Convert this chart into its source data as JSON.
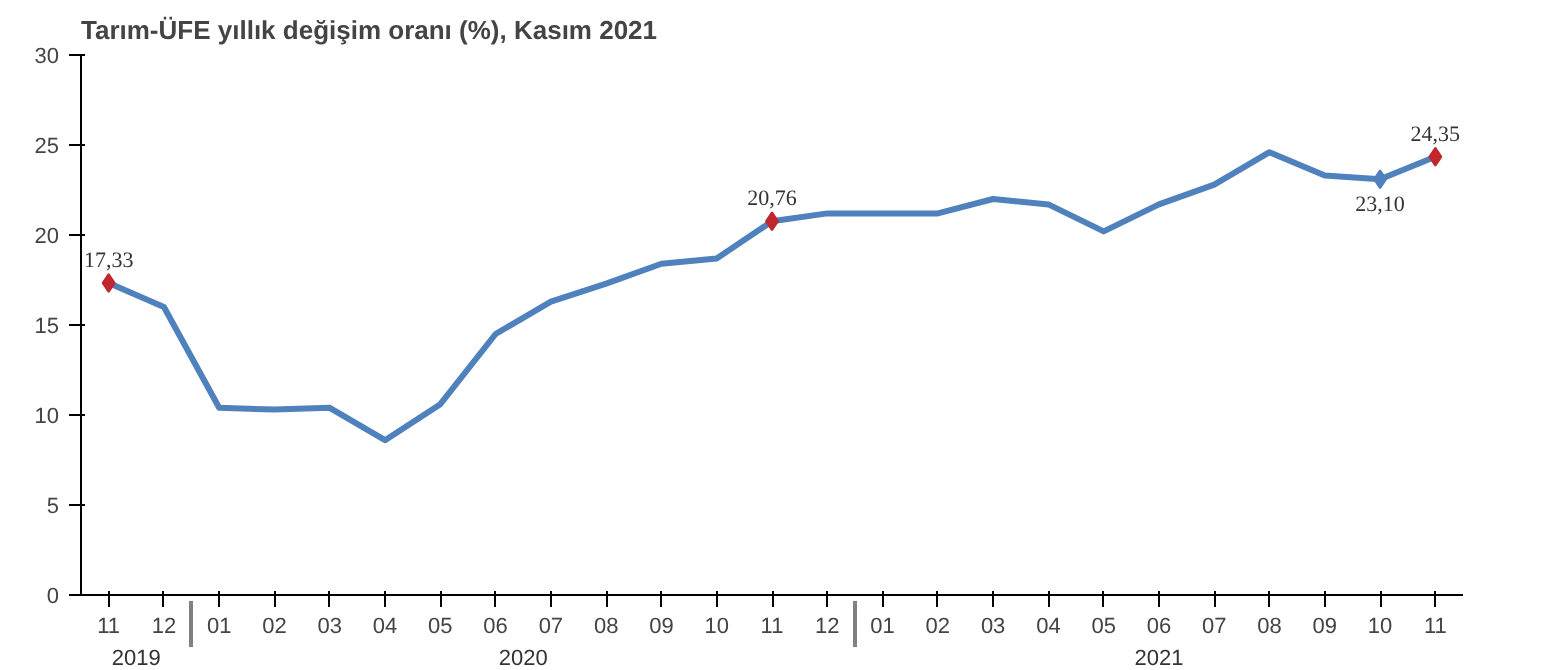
{
  "chart_data": {
    "type": "line",
    "title": "Tarım-ÜFE yıllık değişim oranı (%), Kasım 2021",
    "categories": [
      "11",
      "12",
      "01",
      "02",
      "03",
      "04",
      "05",
      "06",
      "07",
      "08",
      "09",
      "10",
      "11",
      "12",
      "01",
      "02",
      "03",
      "04",
      "05",
      "06",
      "07",
      "08",
      "09",
      "10",
      "11"
    ],
    "annotations": [
      "2019",
      "2020",
      "2021"
    ],
    "series": [
      {
        "color": "#4f81bd",
        "values": [
          17.33,
          16.0,
          10.4,
          10.3,
          10.4,
          8.6,
          10.6,
          14.5,
          16.3,
          17.3,
          18.4,
          18.7,
          20.76,
          21.2,
          21.2,
          21.2,
          22.0,
          21.7,
          20.2,
          21.7,
          22.8,
          24.6,
          23.3,
          23.1,
          24.35
        ],
        "colors": [
          "#c0282d",
          null,
          null,
          null,
          null,
          null,
          null,
          null,
          null,
          null,
          null,
          null,
          "#c0282d",
          null,
          null,
          null,
          null,
          null,
          null,
          null,
          null,
          null,
          null,
          "#4f81bd",
          "#c0282d"
        ],
        "value_labels": [
          "17,33",
          null,
          null,
          null,
          null,
          null,
          null,
          null,
          null,
          null,
          null,
          null,
          "20,76",
          null,
          null,
          null,
          null,
          null,
          null,
          null,
          null,
          null,
          null,
          "23,10",
          "24,35"
        ]
      }
    ],
    "ylim": [
      0,
      30
    ],
    "yticks": [
      0,
      5,
      10,
      15,
      20,
      25,
      30
    ],
    "line_style": "solid"
  }
}
